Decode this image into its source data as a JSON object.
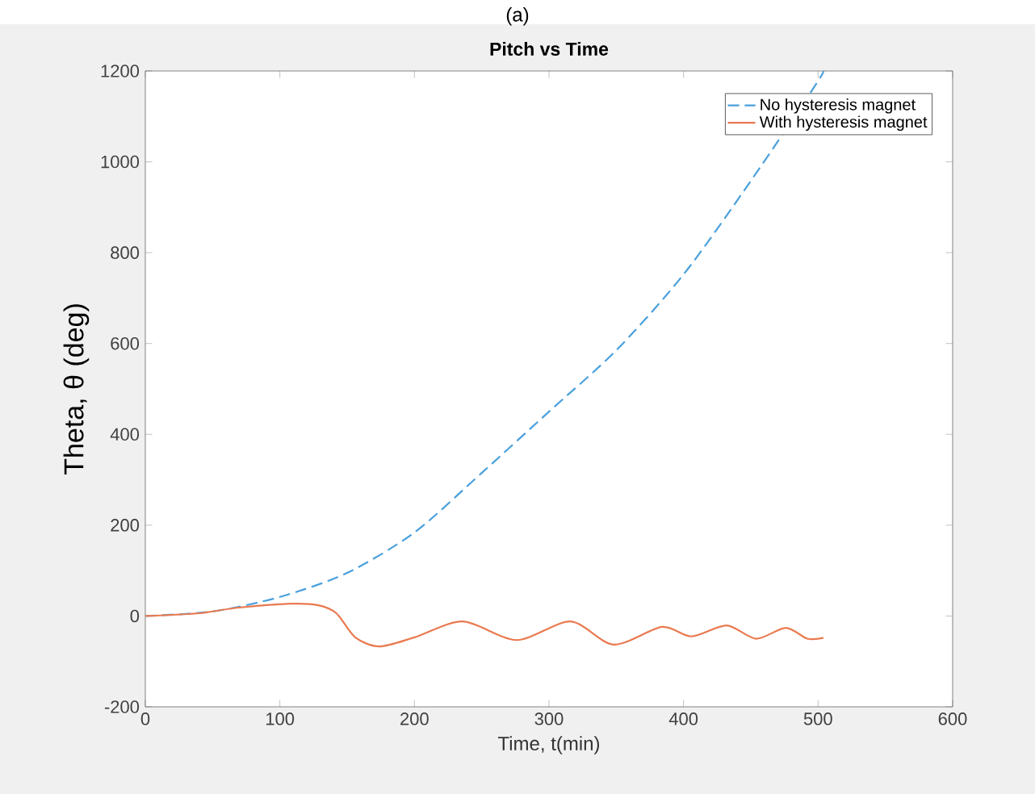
{
  "chart_data": {
    "type": "line",
    "title": "Pitch vs Time",
    "xlabel": "Time, t(min)",
    "ylabel": "Theta, θ (deg)",
    "annotations": [
      "(a)"
    ],
    "xlim": [
      0,
      600
    ],
    "ylim": [
      -200,
      1200
    ],
    "xticks": [
      0,
      100,
      200,
      300,
      400,
      500,
      600
    ],
    "yticks": [
      -200,
      0,
      200,
      400,
      600,
      800,
      1000,
      1200
    ],
    "legend": "top right",
    "grid": false,
    "series": [
      {
        "name": "No hysteresis magnet",
        "color": "#4aa0dc",
        "line_style": "dashed",
        "x": [
          0,
          50,
          100,
          150,
          200,
          250,
          300,
          350,
          400,
          450,
          500,
          503
        ],
        "values": [
          0,
          10,
          42,
          95,
          184,
          315,
          450,
          585,
          752,
          958,
          1178,
          1200
        ]
      },
      {
        "name": "With hysteresis magnet",
        "color": "#e97a50",
        "line_style": "solid",
        "x": [
          0,
          40,
          68,
          108,
          128,
          142,
          156,
          174,
          200,
          236,
          276,
          316,
          348,
          384,
          406,
          432,
          454,
          476,
          492,
          504
        ],
        "values": [
          0,
          6,
          18,
          27,
          24,
          6,
          -47,
          -67,
          -47,
          -12,
          -53,
          -12,
          -63,
          -24,
          -45,
          -21,
          -50,
          -26,
          -50,
          -48
        ]
      }
    ]
  }
}
